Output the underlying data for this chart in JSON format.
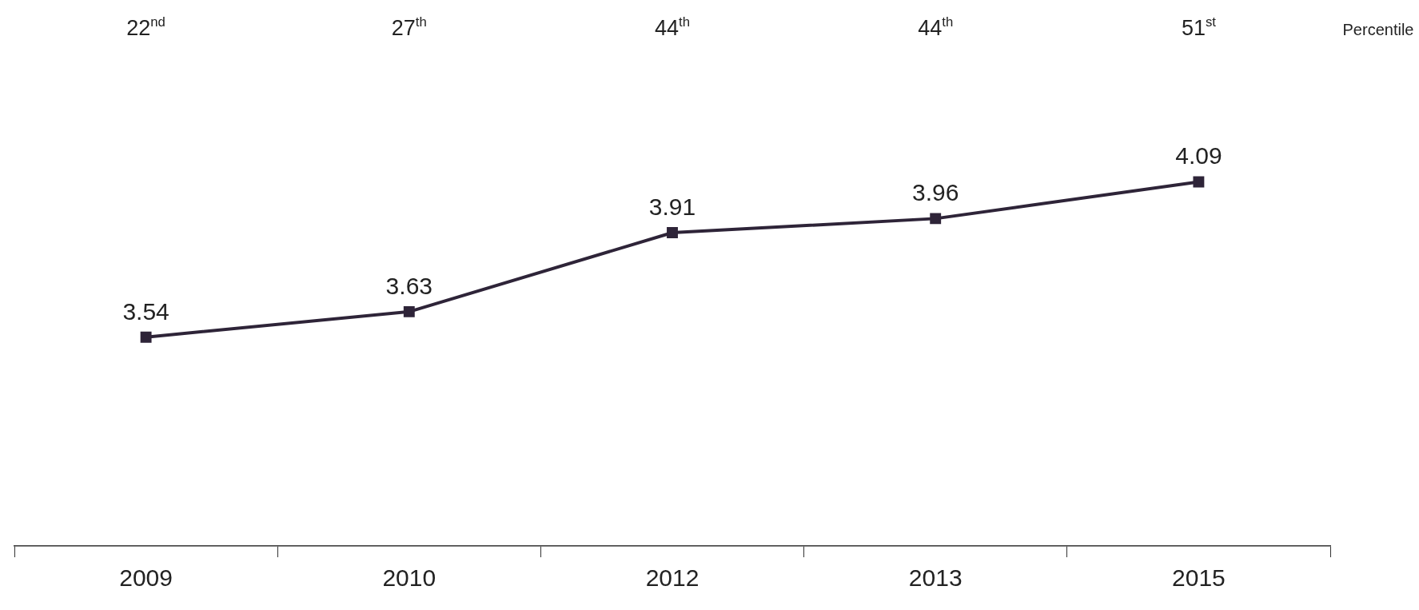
{
  "chart_data": {
    "type": "line",
    "categories": [
      "2009",
      "2010",
      "2012",
      "2013",
      "2015"
    ],
    "series": [
      {
        "color": "#2e2438",
        "values": [
          3.54,
          3.63,
          3.91,
          3.96,
          4.09
        ]
      }
    ],
    "tick_labels": "x",
    "marker": "square",
    "line_style": "solid",
    "data_labels": true,
    "grid": false,
    "legend": false,
    "annotations": [
      "22$^{nd}$",
      "27$^{th}$",
      "44$^{th}$",
      "44$^{th}$",
      "51$^{st}$",
      "Percentile"
    ]
  }
}
